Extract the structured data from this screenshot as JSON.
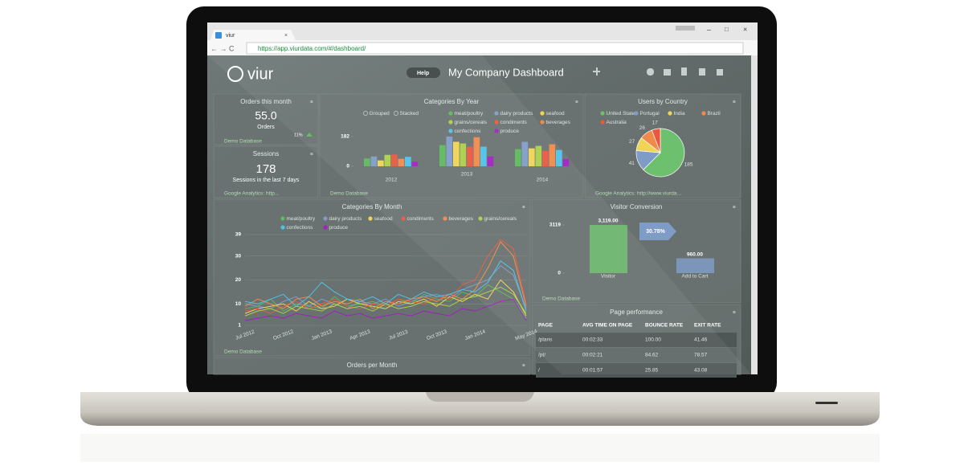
{
  "browser": {
    "tab_title": "viur",
    "url": "https://app.viurdata.com/#/dashboard/"
  },
  "header": {
    "logo": "viur",
    "help": "Help",
    "title": "My Company Dashboard"
  },
  "orders_widget": {
    "title": "Orders this month",
    "value": "55.0",
    "unit": "Orders",
    "change": "11%",
    "source": "Demo Database"
  },
  "sessions_widget": {
    "title": "Sessions",
    "value": "178",
    "subtitle": "Sessions in the last 7 days",
    "source": "Google Analytics: http..."
  },
  "categories_by_year": {
    "type": "bar",
    "title": "Categories By Year",
    "modes": [
      "Grouped",
      "Stacked"
    ],
    "categories": [
      "2012",
      "2013",
      "2014"
    ],
    "series": [
      {
        "name": "meat/poultry",
        "color": "#5cb85c",
        "values": [
          48,
          130,
          105
        ]
      },
      {
        "name": "dairy products",
        "color": "#7f9cc7",
        "values": [
          60,
          182,
          150
        ]
      },
      {
        "name": "seafood",
        "color": "#f0d454",
        "values": [
          36,
          150,
          110
        ]
      },
      {
        "name": "grains/cereals",
        "color": "#a8d04a",
        "values": [
          70,
          140,
          125
        ]
      },
      {
        "name": "condiments",
        "color": "#e9573f",
        "values": [
          72,
          120,
          95
        ]
      },
      {
        "name": "beverages",
        "color": "#f08a4b",
        "values": [
          46,
          178,
          135
        ]
      },
      {
        "name": "confections",
        "color": "#4fc1e9",
        "values": [
          58,
          120,
          100
        ]
      },
      {
        "name": "produce",
        "color": "#a020c0",
        "values": [
          28,
          60,
          45
        ]
      }
    ],
    "ylim": [
      0,
      182
    ],
    "yticks": [
      0,
      182
    ],
    "source": "Demo Database"
  },
  "users_by_country": {
    "type": "pie",
    "title": "Users by Country",
    "categories": [
      "United States",
      "Portugal",
      "India",
      "Brazil",
      "Australia"
    ],
    "values": [
      185,
      41,
      27,
      26,
      17
    ],
    "colors": [
      "#6dc06d",
      "#7f9cc7",
      "#f0d454",
      "#f08a4b",
      "#e9573f"
    ],
    "source": "Google Analytics: http://www.viurda..."
  },
  "categories_by_month": {
    "type": "line",
    "title": "Categories By Month",
    "categories": [
      "Jul 2012",
      null,
      null,
      "Oct 2012",
      null,
      null,
      "Jan 2013",
      null,
      null,
      "Apr 2013",
      null,
      null,
      "Jul 2013",
      null,
      null,
      "Oct 2013",
      null,
      null,
      "Jan 2014",
      null,
      null,
      null,
      "May 2014"
    ],
    "series": [
      {
        "name": "meat/poultry",
        "color": "#5cb85c",
        "values": [
          8,
          9,
          12,
          7,
          10,
          9,
          8,
          13,
          9,
          10,
          11,
          9,
          12,
          10,
          14,
          12,
          11,
          15,
          13,
          18,
          15,
          12,
          4
        ]
      },
      {
        "name": "dairy products",
        "color": "#7f9cc7",
        "values": [
          10,
          9,
          8,
          11,
          13,
          9,
          12,
          10,
          8,
          11,
          10,
          12,
          9,
          11,
          13,
          14,
          12,
          16,
          18,
          20,
          26,
          22,
          8
        ]
      },
      {
        "name": "seafood",
        "color": "#f0d454",
        "values": [
          6,
          8,
          9,
          10,
          7,
          11,
          8,
          9,
          12,
          10,
          9,
          8,
          11,
          10,
          12,
          9,
          13,
          11,
          14,
          12,
          20,
          15,
          5
        ]
      },
      {
        "name": "condiments",
        "color": "#e9573f",
        "values": [
          7,
          8,
          6,
          9,
          11,
          8,
          10,
          12,
          9,
          8,
          10,
          9,
          12,
          11,
          10,
          13,
          12,
          18,
          20,
          30,
          37,
          33,
          10
        ]
      },
      {
        "name": "beverages",
        "color": "#f08a4b",
        "values": [
          9,
          12,
          10,
          8,
          12,
          13,
          9,
          11,
          10,
          12,
          8,
          11,
          10,
          12,
          13,
          11,
          14,
          12,
          16,
          25,
          36,
          30,
          9
        ]
      },
      {
        "name": "grains/cereals",
        "color": "#a8d04a",
        "values": [
          5,
          7,
          8,
          6,
          9,
          8,
          7,
          10,
          8,
          9,
          7,
          10,
          8,
          9,
          11,
          10,
          9,
          12,
          13,
          15,
          17,
          14,
          6
        ]
      },
      {
        "name": "confections",
        "color": "#4fc1e9",
        "values": [
          11,
          10,
          12,
          14,
          9,
          13,
          19,
          15,
          12,
          11,
          13,
          10,
          14,
          12,
          15,
          13,
          14,
          16,
          15,
          19,
          28,
          24,
          7
        ]
      },
      {
        "name": "produce",
        "color": "#a020c0",
        "values": [
          3,
          4,
          5,
          4,
          6,
          5,
          4,
          7,
          5,
          6,
          4,
          5,
          6,
          5,
          7,
          6,
          5,
          8,
          7,
          9,
          11,
          12,
          3
        ]
      }
    ],
    "ylim": [
      1,
      39
    ],
    "yticks": [
      1,
      10,
      20,
      30,
      39
    ],
    "grid": true,
    "source": "Demo Database"
  },
  "visitor_conversion": {
    "type": "bar",
    "title": "Visitor Conversion",
    "categories": [
      "Visitor",
      "Add to Cart"
    ],
    "values": [
      3119,
      960
    ],
    "value_labels": [
      "3,119.00",
      "960.00"
    ],
    "color": "#6dc06d",
    "colors": [
      "#6dc06d",
      "#7f9cc7"
    ],
    "rate": "30.78%",
    "ylim": [
      0,
      3119
    ],
    "yticks": [
      0,
      3119
    ],
    "source": "Demo Database"
  },
  "page_performance": {
    "title": "Page performance",
    "columns": [
      "PAGE",
      "AVG TIME ON PAGE",
      "BOUNCE RATE",
      "EXIT RATE"
    ],
    "rows": [
      [
        "/plans",
        "00:02:33",
        "100.00",
        "41.46"
      ],
      [
        "/pt/",
        "00:02:21",
        "84.62",
        "78.57"
      ],
      [
        "/",
        "00:01:57",
        "25.85",
        "43.08"
      ]
    ]
  },
  "orders_per_month": {
    "title": "Orders per Month"
  }
}
